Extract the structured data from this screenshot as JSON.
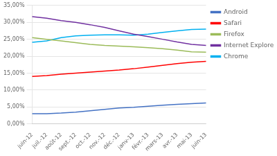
{
  "chart_data": {
    "type": "line",
    "categories": [
      "juin-12",
      "juil.-12",
      "août-12",
      "sept.-12",
      "oct.-12",
      "nov.-12",
      "déc.-12",
      "janv-13",
      "févr.-13",
      "mars-13",
      "avr.-13",
      "mai-13",
      "juin-13"
    ],
    "series": [
      {
        "name": "Android",
        "color": "#4472C4",
        "values": [
          3.0,
          3.0,
          3.2,
          3.5,
          3.9,
          4.3,
          4.7,
          4.9,
          5.2,
          5.5,
          5.8,
          6.0,
          6.2
        ]
      },
      {
        "name": "Safari",
        "color": "#FF0000",
        "values": [
          14.0,
          14.3,
          14.7,
          15.0,
          15.3,
          15.6,
          15.9,
          16.3,
          16.8,
          17.3,
          17.8,
          18.2,
          18.5
        ]
      },
      {
        "name": "Firefox",
        "color": "#9BBB59",
        "values": [
          25.5,
          25.0,
          24.5,
          24.0,
          23.5,
          23.2,
          23.0,
          22.8,
          22.5,
          22.2,
          21.8,
          21.3,
          21.2
        ]
      },
      {
        "name": "Internet Explorer",
        "color": "#7030A0",
        "values": [
          31.7,
          31.2,
          30.5,
          30.0,
          29.3,
          28.5,
          27.5,
          26.5,
          25.8,
          25.0,
          24.2,
          23.5,
          23.2
        ]
      },
      {
        "name": "Chrome",
        "color": "#00B0F0",
        "values": [
          24.1,
          24.5,
          25.5,
          26.0,
          26.2,
          26.3,
          26.3,
          26.2,
          26.5,
          27.0,
          27.5,
          27.9,
          28.0
        ]
      }
    ],
    "ylim": [
      0,
      35
    ],
    "yticks": [
      {
        "value": 0,
        "label": "0,00%"
      },
      {
        "value": 5,
        "label": "5,00%"
      },
      {
        "value": 10,
        "label": "10,00%"
      },
      {
        "value": 15,
        "label": "15,00%"
      },
      {
        "value": 20,
        "label": "20,00%"
      },
      {
        "value": 25,
        "label": "25,00%"
      },
      {
        "value": 30,
        "label": "30,00%"
      },
      {
        "value": 35,
        "label": "35,00%"
      }
    ],
    "grid": "y",
    "legend": "right"
  }
}
